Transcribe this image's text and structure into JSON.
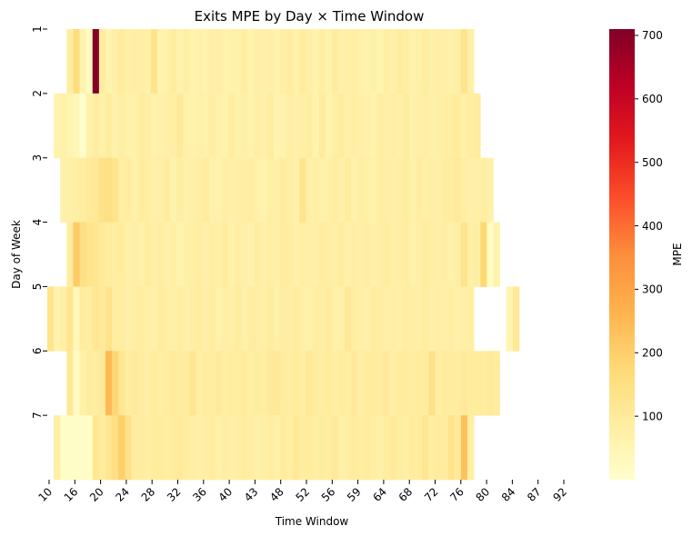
{
  "chart_data": {
    "type": "heatmap",
    "title": "Exits MPE by Day × Time Window",
    "xlabel": "Time Window",
    "ylabel": "Day of Week",
    "colorbar_label": "MPE",
    "colormap": "YlOrRd",
    "vmin": 0,
    "vmax": 710,
    "colorbar_ticks": [
      100,
      200,
      300,
      400,
      500,
      600,
      700
    ],
    "y_categories": [
      "1",
      "2",
      "3",
      "4",
      "5",
      "6",
      "7"
    ],
    "x_tick_labels": [
      "10",
      "16",
      "20",
      "24",
      "28",
      "32",
      "36",
      "40",
      "43",
      "48",
      "52",
      "56",
      "59",
      "64",
      "68",
      "72",
      "76",
      "80",
      "84",
      "87",
      "92"
    ],
    "rows": [
      {
        "day": "1",
        "start_col": 3,
        "values": [
          85,
          160,
          60,
          25,
          700,
          90,
          60,
          75,
          95,
          75,
          80,
          80,
          70,
          130,
          60,
          70,
          90,
          65,
          80,
          60,
          70,
          60,
          75,
          80,
          65,
          70,
          70,
          85,
          60,
          80,
          70,
          75,
          60,
          80,
          85,
          70,
          95,
          75,
          60,
          80,
          65,
          90,
          70,
          75,
          80,
          70,
          65,
          75,
          60,
          80,
          70,
          90,
          80,
          65,
          75,
          85,
          70,
          80,
          75,
          70,
          80,
          130,
          75
        ]
      },
      {
        "day": "2",
        "start_col": 1,
        "values": [
          60,
          70,
          55,
          40,
          5,
          70,
          85,
          70,
          90,
          65,
          80,
          70,
          70,
          90,
          80,
          65,
          70,
          75,
          80,
          100,
          70,
          65,
          75,
          70,
          80,
          70,
          60,
          85,
          70,
          75,
          65,
          80,
          70,
          90,
          60,
          65,
          80,
          70,
          75,
          85,
          60,
          95,
          65,
          80,
          90,
          70,
          80,
          75,
          70,
          60,
          85,
          75,
          80,
          70,
          90,
          65,
          75,
          80,
          70,
          75,
          80,
          85,
          95,
          70,
          85,
          90
        ]
      },
      {
        "day": "3",
        "start_col": 2,
        "values": [
          70,
          75,
          80,
          85,
          100,
          110,
          140,
          145,
          130,
          80,
          85,
          70,
          90,
          80,
          70,
          75,
          90,
          65,
          80,
          70,
          75,
          80,
          95,
          70,
          65,
          80,
          70,
          75,
          80,
          85,
          70,
          60,
          80,
          75,
          90,
          80,
          70,
          130,
          75,
          80,
          70,
          75,
          85,
          70,
          90,
          65,
          80,
          75,
          70,
          85,
          80,
          75,
          80,
          90,
          70,
          85,
          75,
          80,
          75,
          85,
          90,
          100,
          80,
          70,
          75,
          80,
          70
        ]
      },
      {
        "day": "4",
        "start_col": 3,
        "values": [
          90,
          210,
          150,
          130,
          120,
          100,
          90,
          85,
          95,
          70,
          80,
          70,
          90,
          75,
          85,
          70,
          80,
          65,
          75,
          80,
          85,
          70,
          80,
          75,
          95,
          70,
          80,
          75,
          65,
          85,
          70,
          80,
          75,
          90,
          85,
          70,
          80,
          75,
          70,
          85,
          80,
          75,
          90,
          70,
          80,
          75,
          85,
          70,
          80,
          90,
          75,
          80,
          85,
          70,
          75,
          90,
          80,
          75,
          80,
          70,
          80,
          130,
          75,
          80,
          180,
          20,
          60
        ]
      },
      {
        "day": "5",
        "start_col": 0,
        "values": [
          130,
          60,
          80,
          120,
          40,
          90,
          85,
          120,
          100,
          130,
          85,
          90,
          70,
          80,
          85,
          75,
          70,
          90,
          80,
          75,
          85,
          70,
          80,
          90,
          75,
          85,
          70,
          80,
          75,
          90,
          70,
          85,
          80,
          75,
          90,
          70,
          85,
          80,
          90,
          75,
          70,
          85,
          80,
          95,
          75,
          70,
          110,
          80,
          75,
          70,
          90,
          85,
          75,
          80,
          70,
          85,
          80,
          75,
          90,
          70,
          80,
          75,
          80,
          70,
          75,
          80,
          0,
          0,
          0,
          0,
          0,
          55,
          110
        ]
      },
      {
        "day": "6",
        "start_col": 3,
        "values": [
          110,
          20,
          70,
          90,
          85,
          100,
          250,
          180,
          120,
          90,
          100,
          85,
          80,
          95,
          80,
          85,
          100,
          90,
          85,
          120,
          80,
          90,
          85,
          100,
          80,
          90,
          85,
          95,
          80,
          90,
          85,
          100,
          110,
          90,
          85,
          95,
          80,
          110,
          90,
          85,
          95,
          80,
          90,
          85,
          100,
          80,
          95,
          90,
          85,
          100,
          80,
          95,
          90,
          85,
          95,
          90,
          140,
          80,
          95,
          90,
          85,
          100,
          90,
          95,
          90,
          100,
          95
        ]
      },
      {
        "day": "7",
        "start_col": 1,
        "values": [
          80,
          10,
          10,
          10,
          10,
          10,
          120,
          90,
          120,
          150,
          200,
          140,
          85,
          90,
          80,
          95,
          90,
          85,
          90,
          100,
          85,
          80,
          75,
          80,
          90,
          70,
          85,
          75,
          80,
          90,
          85,
          70,
          80,
          85,
          75,
          90,
          80,
          110,
          85,
          95,
          80,
          90,
          85,
          100,
          75,
          80,
          90,
          85,
          95,
          80,
          75,
          90,
          100,
          85,
          80,
          95,
          90,
          120,
          85,
          95,
          90,
          130,
          100,
          230,
          80
        ]
      }
    ]
  }
}
